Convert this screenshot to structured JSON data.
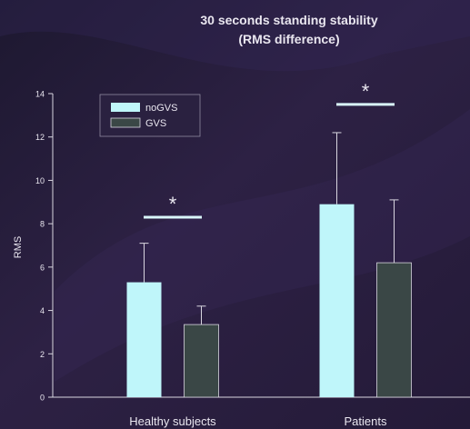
{
  "colors": {
    "background": "#2a1f3f",
    "no_gvs": "#bff6fa",
    "gvs": "#3a4746",
    "text": "#e9e6ef",
    "axis": "#d9d6e0"
  },
  "chart_data": {
    "type": "bar",
    "title": "30 seconds standing stability",
    "subtitle": "(RMS difference)",
    "ylabel": "RMS",
    "xlabel": "",
    "ylim": [
      0,
      14
    ],
    "yticks": [
      0,
      2,
      4,
      6,
      8,
      10,
      12,
      14
    ],
    "grid": false,
    "legend": "top-left",
    "categories": [
      "Healthy subjects",
      "Patients"
    ],
    "series": [
      {
        "name": "noGVS",
        "values": [
          5.3,
          8.9
        ],
        "error": [
          1.8,
          3.3
        ]
      },
      {
        "name": "GVS",
        "values": [
          3.35,
          6.2
        ],
        "error": [
          0.85,
          2.9
        ]
      }
    ],
    "annotations": [
      {
        "category": "Healthy subjects",
        "text": "*",
        "y": 8.3
      },
      {
        "category": "Patients",
        "text": "*",
        "y": 13.5
      }
    ]
  }
}
